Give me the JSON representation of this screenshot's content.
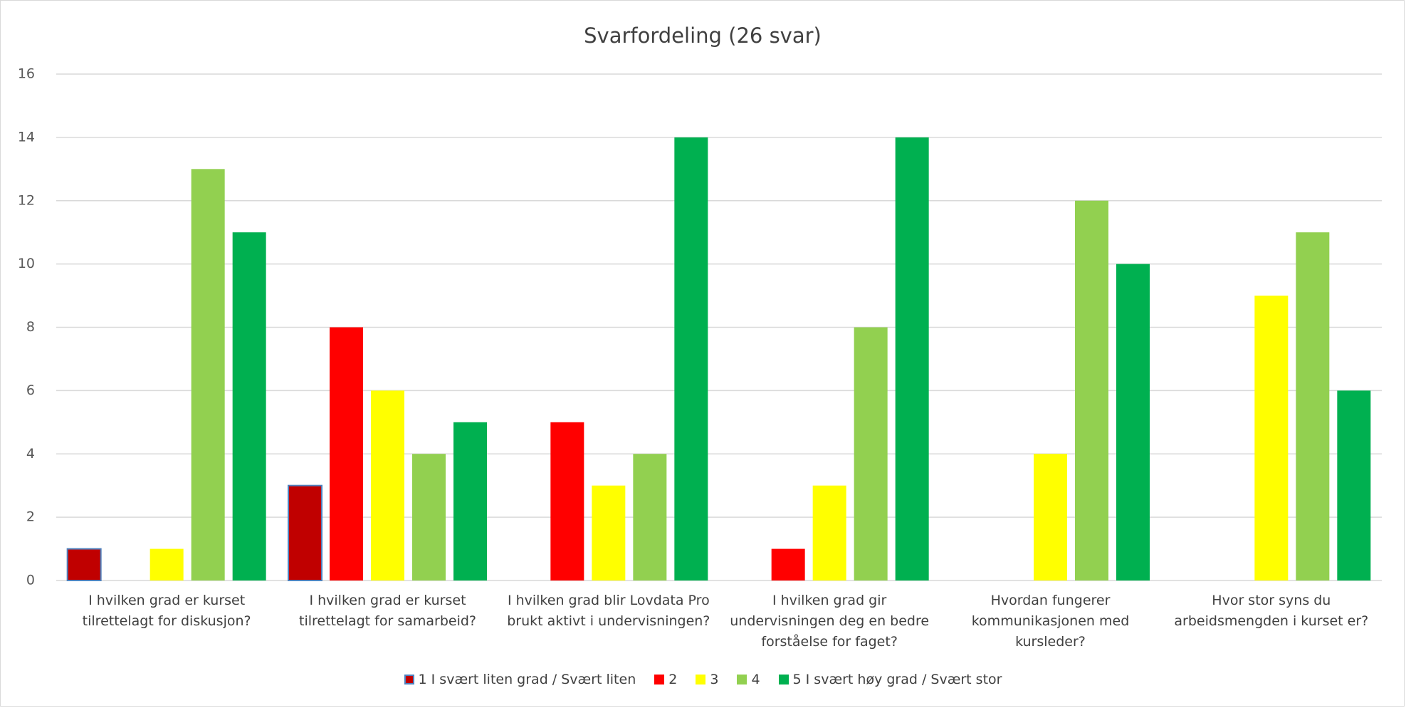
{
  "chart_data": {
    "type": "bar",
    "title": "Svarfordeling (26 svar)",
    "categories": [
      "I hvilken grad er kurset tilrettelagt for diskusjon?",
      "I hvilken grad er kurset tilrettelagt for samarbeid?",
      "I hvilken grad blir Lovdata Pro brukt aktivt i undervisningen?",
      "I hvilken grad gir undervisningen deg en bedre forståelse for faget?",
      "Hvordan fungerer kommunikasjonen med kursleder?",
      "Hvor stor syns du arbeidsmengden i kurset er?"
    ],
    "series": [
      {
        "name": "1 I svært liten grad / Svært liten",
        "color": "#c00000",
        "values": [
          1,
          3,
          0,
          0,
          0,
          0
        ]
      },
      {
        "name": "2",
        "color": "#ff0000",
        "values": [
          0,
          8,
          5,
          1,
          0,
          0
        ]
      },
      {
        "name": "3",
        "color": "#ffff00",
        "values": [
          1,
          6,
          3,
          3,
          4,
          9
        ]
      },
      {
        "name": "4",
        "color": "#92d050",
        "values": [
          13,
          4,
          4,
          8,
          12,
          11
        ]
      },
      {
        "name": "5 I svært høy grad / Svært stor",
        "color": "#00b050",
        "values": [
          11,
          5,
          14,
          14,
          10,
          6
        ]
      }
    ],
    "ylim": [
      0,
      16
    ],
    "yticks": [
      0,
      2,
      4,
      6,
      8,
      10,
      12,
      14,
      16
    ],
    "grid": true,
    "legend": "bottom"
  }
}
